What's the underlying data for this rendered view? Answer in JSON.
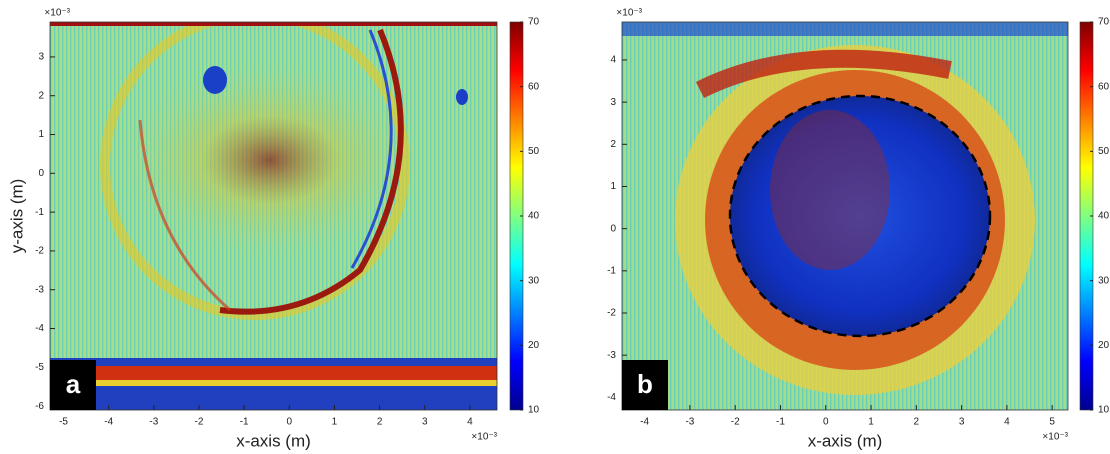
{
  "chart_data": [
    {
      "type": "heatmap",
      "panel_label": "a",
      "xlabel": "x-axis (m)",
      "ylabel": "y-axis (m)",
      "x_exponent": "×10⁻³",
      "y_exponent": "×10⁻³",
      "xlim": [
        -5.3,
        4.6
      ],
      "xticks": [
        -5,
        -4,
        -3,
        -2,
        -1,
        0,
        1,
        2,
        3,
        4
      ],
      "ylim": [
        -6.1,
        3.9
      ],
      "yticks": [
        -6,
        -5,
        -4,
        -3,
        -2,
        -1,
        0,
        1,
        2,
        3
      ],
      "colormap": "jet",
      "clim": [
        10,
        70
      ],
      "cticks": [
        10,
        20,
        30,
        40,
        50,
        60,
        70
      ]
    },
    {
      "type": "heatmap",
      "panel_label": "b",
      "xlabel": "x-axis (m)",
      "x_exponent": "×10⁻³",
      "y_exponent": "×10⁻³",
      "xlim": [
        -4.5,
        5.35
      ],
      "xticks": [
        -4,
        -3,
        -2,
        -1,
        0,
        1,
        2,
        3,
        4,
        5
      ],
      "ylim": [
        -4.3,
        4.9
      ],
      "yticks": [
        -4,
        -3,
        -2,
        -1,
        0,
        1,
        2,
        3,
        4
      ],
      "colormap": "jet",
      "clim": [
        10,
        70
      ],
      "cticks": [
        10,
        20,
        30,
        40,
        50,
        60,
        70
      ]
    }
  ]
}
